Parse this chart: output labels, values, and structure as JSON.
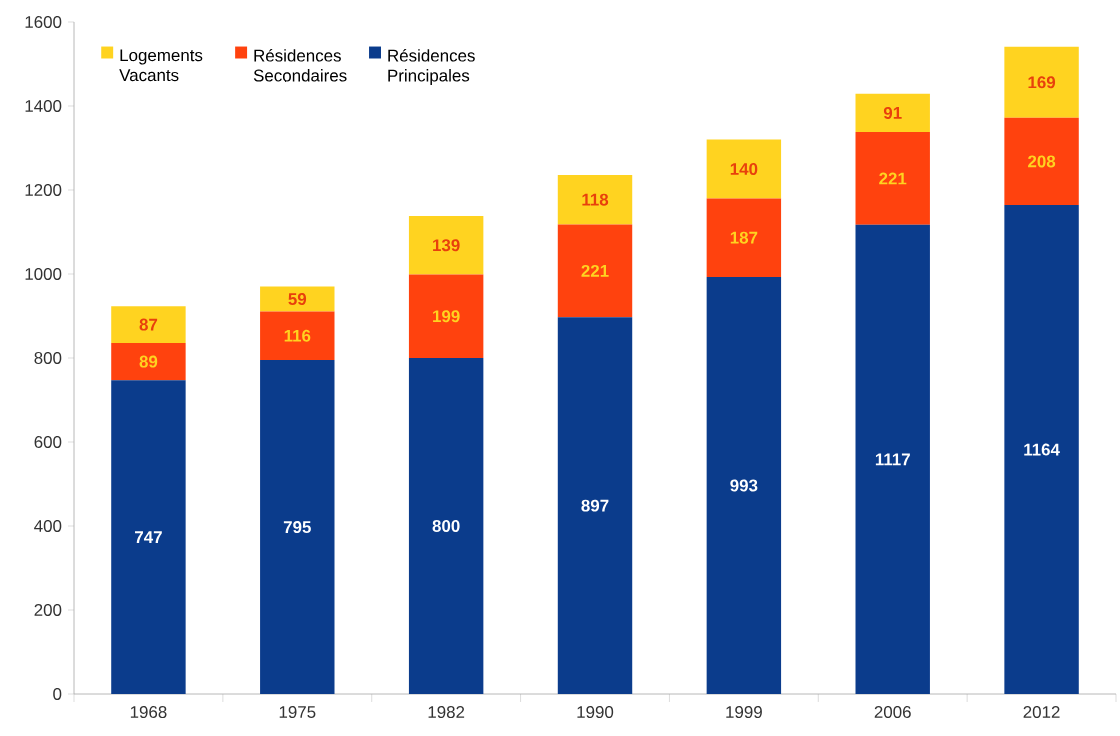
{
  "chart_data": {
    "type": "bar",
    "stacked": true,
    "categories": [
      "1968",
      "1975",
      "1982",
      "1990",
      "1999",
      "2006",
      "2012"
    ],
    "series": [
      {
        "name": "Résidences Principales",
        "color": "#0b3c8c",
        "values": [
          747,
          795,
          800,
          897,
          993,
          1117,
          1164
        ]
      },
      {
        "name": "Résidences Secondaires",
        "color": "#ff420e",
        "values": [
          89,
          116,
          199,
          221,
          187,
          221,
          208
        ]
      },
      {
        "name": "Logements Vacants",
        "color": "#ffd320",
        "values": [
          87,
          59,
          139,
          118,
          140,
          91,
          169
        ]
      }
    ],
    "ylim": [
      0,
      1600
    ],
    "yticks": [
      0,
      200,
      400,
      600,
      800,
      1000,
      1200,
      1400,
      1600
    ],
    "data_labels": true,
    "legend": "top left"
  }
}
